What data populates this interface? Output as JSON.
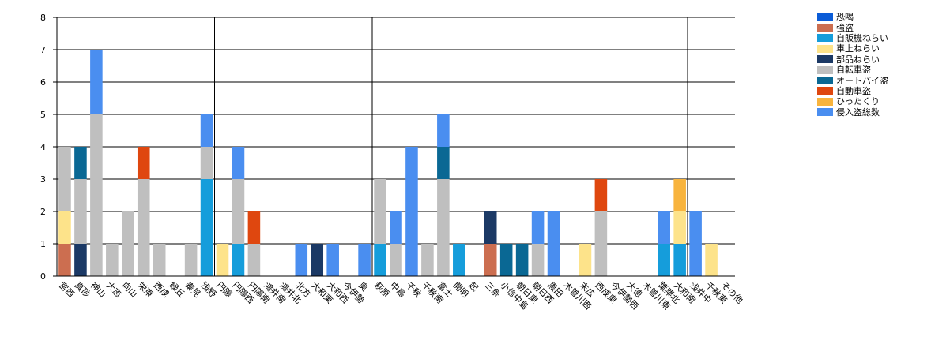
{
  "chart_data": {
    "type": "bar",
    "stacked": true,
    "categories": [
      "宮西",
      "真砂",
      "神山",
      "大志",
      "向山",
      "栄東",
      "西成",
      "緑丘",
      "泰見",
      "浅野",
      "円陽",
      "円陽西",
      "円陽南",
      "鴻井南",
      "鴻井北",
      "北方",
      "大和東",
      "大和西",
      "今伊勢",
      "奥",
      "萩原",
      "中島",
      "千秋",
      "千秋南",
      "富士",
      "開明",
      "起",
      "三条",
      "小信中島",
      "朝日東",
      "朝日西",
      "黒田",
      "木曽川西",
      "末広",
      "西成東",
      "今伊勢西",
      "大徳",
      "木曽川東",
      "葉栗北",
      "大和南",
      "浅井中",
      "千秋東",
      "その他"
    ],
    "series": [
      {
        "name": "恐喝",
        "color": "#0b5cd7",
        "values": [
          0,
          0,
          0,
          0,
          0,
          0,
          0,
          0,
          0,
          0,
          0,
          0,
          0,
          0,
          0,
          0,
          0,
          0,
          0,
          0,
          0,
          0,
          0,
          0,
          0,
          0,
          0,
          0,
          0,
          0,
          0,
          0,
          0,
          0,
          0,
          0,
          0,
          0,
          0,
          0,
          0,
          0,
          0
        ]
      },
      {
        "name": "強盗",
        "color": "#cc6e50",
        "values": [
          1,
          0,
          0,
          0,
          0,
          0,
          0,
          0,
          0,
          0,
          0,
          0,
          0,
          0,
          0,
          0,
          0,
          0,
          0,
          0,
          0,
          0,
          0,
          0,
          0,
          0,
          0,
          1,
          0,
          0,
          0,
          0,
          0,
          0,
          0,
          0,
          0,
          0,
          0,
          0,
          0,
          0,
          0
        ]
      },
      {
        "name": "自販機ねらい",
        "color": "#159ddb",
        "values": [
          0,
          0,
          0,
          0,
          0,
          0,
          0,
          0,
          0,
          3,
          0,
          1,
          0,
          0,
          0,
          0,
          0,
          0,
          0,
          0,
          1,
          0,
          0,
          0,
          0,
          1,
          0,
          0,
          0,
          0,
          0,
          0,
          0,
          0,
          0,
          0,
          0,
          0,
          1,
          1,
          0,
          0,
          0
        ]
      },
      {
        "name": "車上ねらい",
        "color": "#fde38a",
        "values": [
          1,
          0,
          0,
          0,
          0,
          0,
          0,
          0,
          0,
          0,
          1,
          0,
          0,
          0,
          0,
          0,
          0,
          0,
          0,
          0,
          0,
          0,
          0,
          0,
          0,
          0,
          0,
          0,
          0,
          0,
          0,
          0,
          0,
          1,
          0,
          0,
          0,
          0,
          0,
          1,
          0,
          1,
          0
        ]
      },
      {
        "name": "部品ねらい",
        "color": "#1b3965",
        "values": [
          0,
          1,
          0,
          0,
          0,
          0,
          0,
          0,
          0,
          0,
          0,
          0,
          0,
          0,
          0,
          0,
          1,
          0,
          0,
          0,
          0,
          0,
          0,
          0,
          0,
          0,
          0,
          1,
          0,
          0,
          0,
          0,
          0,
          0,
          0,
          0,
          0,
          0,
          0,
          0,
          0,
          0,
          0
        ]
      },
      {
        "name": "自転車盗",
        "color": "#bfbfbf",
        "values": [
          2,
          2,
          5,
          1,
          2,
          3,
          1,
          0,
          1,
          1,
          0,
          2,
          1,
          0,
          0,
          0,
          0,
          0,
          0,
          0,
          2,
          1,
          0,
          1,
          3,
          0,
          0,
          0,
          0,
          0,
          1,
          0,
          0,
          0,
          2,
          0,
          0,
          0,
          0,
          0,
          0,
          0,
          0
        ]
      },
      {
        "name": "オートバイ盗",
        "color": "#0a6894",
        "values": [
          0,
          1,
          0,
          0,
          0,
          0,
          0,
          0,
          0,
          0,
          0,
          0,
          0,
          0,
          0,
          0,
          0,
          0,
          0,
          0,
          0,
          0,
          0,
          0,
          1,
          0,
          0,
          0,
          1,
          1,
          0,
          0,
          0,
          0,
          0,
          0,
          0,
          0,
          0,
          0,
          0,
          0,
          0
        ]
      },
      {
        "name": "自動車盗",
        "color": "#df470f",
        "values": [
          0,
          0,
          0,
          0,
          0,
          1,
          0,
          0,
          0,
          0,
          0,
          0,
          1,
          0,
          0,
          0,
          0,
          0,
          0,
          0,
          0,
          0,
          0,
          0,
          0,
          0,
          0,
          0,
          0,
          0,
          0,
          0,
          0,
          0,
          1,
          0,
          0,
          0,
          0,
          0,
          0,
          0,
          0
        ]
      },
      {
        "name": "ひったくり",
        "color": "#f8b43e",
        "values": [
          0,
          0,
          0,
          0,
          0,
          0,
          0,
          0,
          0,
          0,
          0,
          0,
          0,
          0,
          0,
          0,
          0,
          0,
          0,
          0,
          0,
          0,
          0,
          0,
          0,
          0,
          0,
          0,
          0,
          0,
          0,
          0,
          0,
          0,
          0,
          0,
          0,
          0,
          0,
          1,
          0,
          0,
          0
        ]
      },
      {
        "name": "侵入盗総数",
        "color": "#4a8ef0",
        "values": [
          0,
          0,
          2,
          0,
          0,
          0,
          0,
          0,
          0,
          1,
          0,
          1,
          0,
          0,
          0,
          1,
          0,
          1,
          0,
          1,
          0,
          1,
          4,
          0,
          1,
          0,
          0,
          0,
          0,
          0,
          1,
          2,
          0,
          0,
          0,
          0,
          0,
          0,
          1,
          0,
          2,
          0,
          0
        ]
      }
    ],
    "yticks": [
      "0",
      "1",
      "2",
      "3",
      "4",
      "5",
      "6",
      "7",
      "8"
    ],
    "ylim": [
      0,
      8
    ],
    "grid": true,
    "legend_position": "top-right",
    "title": "",
    "xlabel": "",
    "ylabel": ""
  }
}
